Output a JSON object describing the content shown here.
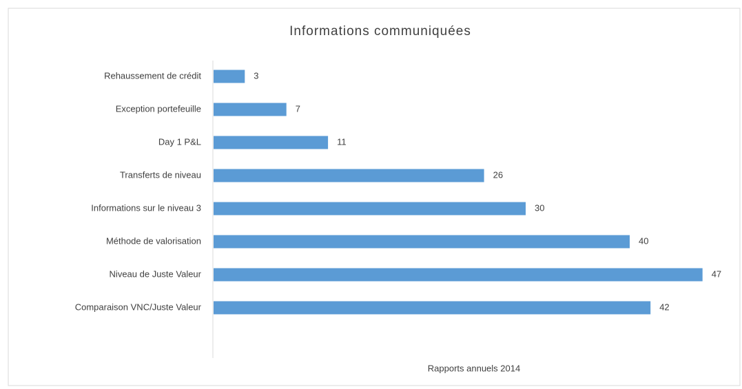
{
  "chart_data": {
    "type": "bar",
    "orientation": "horizontal",
    "title": "Informations communiquées",
    "x_label": "Rapports annuels 2014",
    "categories": [
      "Rehaussement de crédit",
      "Exception portefeuille",
      "Day 1 P&L",
      "Transferts de niveau",
      "Informations sur le niveau 3",
      "Méthode de valorisation",
      "Niveau de Juste Valeur",
      "Comparaison VNC/Juste Valeur"
    ],
    "values": [
      3,
      7,
      11,
      26,
      30,
      40,
      47,
      42
    ],
    "color": "#5b9bd5"
  }
}
